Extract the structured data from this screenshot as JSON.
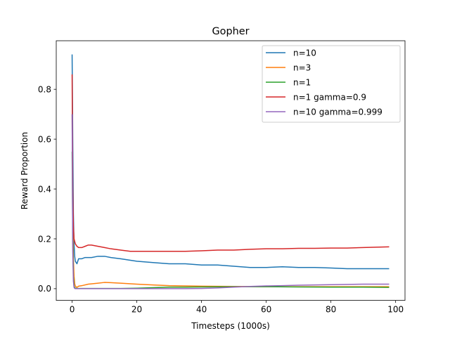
{
  "chart_data": {
    "type": "line",
    "title": "Gopher",
    "xlabel": "Timesteps (1000s)",
    "ylabel": "Reward Proportion",
    "xlim": [
      -4.9,
      102.9
    ],
    "ylim": [
      -0.047,
      0.995
    ],
    "xticks": [
      0,
      20,
      40,
      60,
      80,
      100
    ],
    "yticks": [
      0.0,
      0.2,
      0.4,
      0.6,
      0.8
    ],
    "xtick_labels": [
      "0",
      "20",
      "40",
      "60",
      "80",
      "100"
    ],
    "ytick_labels": [
      "0.0",
      "0.2",
      "0.4",
      "0.6",
      "0.8"
    ],
    "grid": false,
    "legend_position": "top-right",
    "series": [
      {
        "name": "n=10",
        "color": "#1f77b4",
        "x": [
          0,
          0.2,
          0.4,
          0.6,
          0.8,
          1,
          1.5,
          2,
          3,
          4,
          6,
          8,
          10,
          12,
          15,
          20,
          25,
          30,
          35,
          40,
          45,
          50,
          55,
          60,
          65,
          70,
          75,
          80,
          85,
          90,
          95,
          98
        ],
        "y": [
          0.94,
          0.6,
          0.3,
          0.18,
          0.13,
          0.11,
          0.1,
          0.12,
          0.12,
          0.125,
          0.125,
          0.13,
          0.13,
          0.125,
          0.12,
          0.11,
          0.105,
          0.1,
          0.1,
          0.095,
          0.095,
          0.09,
          0.085,
          0.085,
          0.088,
          0.085,
          0.085,
          0.083,
          0.08,
          0.08,
          0.08,
          0.08
        ]
      },
      {
        "name": "n=3",
        "color": "#ff7f0e",
        "x": [
          0,
          0.2,
          0.4,
          0.6,
          0.8,
          1,
          1.5,
          2,
          3,
          5,
          8,
          10,
          12,
          15,
          20,
          25,
          30,
          35,
          40,
          50,
          60,
          70,
          80,
          90,
          98
        ],
        "y": [
          0.7,
          0.35,
          0.12,
          0.05,
          0.02,
          0.01,
          0.005,
          0.01,
          0.012,
          0.018,
          0.022,
          0.025,
          0.024,
          0.022,
          0.018,
          0.015,
          0.012,
          0.011,
          0.01,
          0.009,
          0.008,
          0.008,
          0.008,
          0.008,
          0.008
        ]
      },
      {
        "name": "n=1",
        "color": "#2ca02c",
        "x": [
          0,
          0.2,
          0.4,
          0.6,
          0.8,
          1,
          1.5,
          2,
          5,
          10,
          15,
          20,
          25,
          30,
          35,
          40,
          50,
          60,
          70,
          80,
          90,
          98
        ],
        "y": [
          0.55,
          0.2,
          0.05,
          0.01,
          0.004,
          0.002,
          0.001,
          0.001,
          0.001,
          0.001,
          0.001,
          0.002,
          0.004,
          0.006,
          0.006,
          0.007,
          0.008,
          0.008,
          0.007,
          0.006,
          0.006,
          0.005
        ]
      },
      {
        "name": "n=1 gamma=0.9",
        "color": "#d62728",
        "x": [
          0,
          0.2,
          0.4,
          0.6,
          0.8,
          1,
          1.5,
          2,
          3,
          4,
          5,
          6,
          8,
          10,
          12,
          15,
          18,
          20,
          25,
          30,
          35,
          40,
          45,
          50,
          55,
          60,
          65,
          70,
          75,
          80,
          85,
          90,
          95,
          98
        ],
        "y": [
          0.86,
          0.4,
          0.25,
          0.2,
          0.19,
          0.18,
          0.17,
          0.165,
          0.165,
          0.17,
          0.175,
          0.175,
          0.17,
          0.165,
          0.16,
          0.155,
          0.15,
          0.15,
          0.15,
          0.15,
          0.15,
          0.152,
          0.155,
          0.155,
          0.158,
          0.16,
          0.16,
          0.162,
          0.162,
          0.163,
          0.163,
          0.165,
          0.167,
          0.168
        ]
      },
      {
        "name": "n=10 gamma=0.999",
        "color": "#9467bd",
        "x": [
          0,
          0.2,
          0.4,
          0.6,
          0.8,
          1,
          1.5,
          2,
          5,
          10,
          15,
          20,
          25,
          30,
          35,
          40,
          45,
          50,
          55,
          60,
          65,
          70,
          75,
          80,
          85,
          90,
          95,
          98
        ],
        "y": [
          0.7,
          0.15,
          0.03,
          0.005,
          0.001,
          0.0,
          0.0,
          0.0,
          0.0,
          0.0,
          0.0,
          0.0,
          0.0,
          0.0,
          0.0,
          0.001,
          0.003,
          0.006,
          0.009,
          0.011,
          0.012,
          0.014,
          0.015,
          0.016,
          0.017,
          0.018,
          0.018,
          0.018
        ]
      }
    ]
  }
}
